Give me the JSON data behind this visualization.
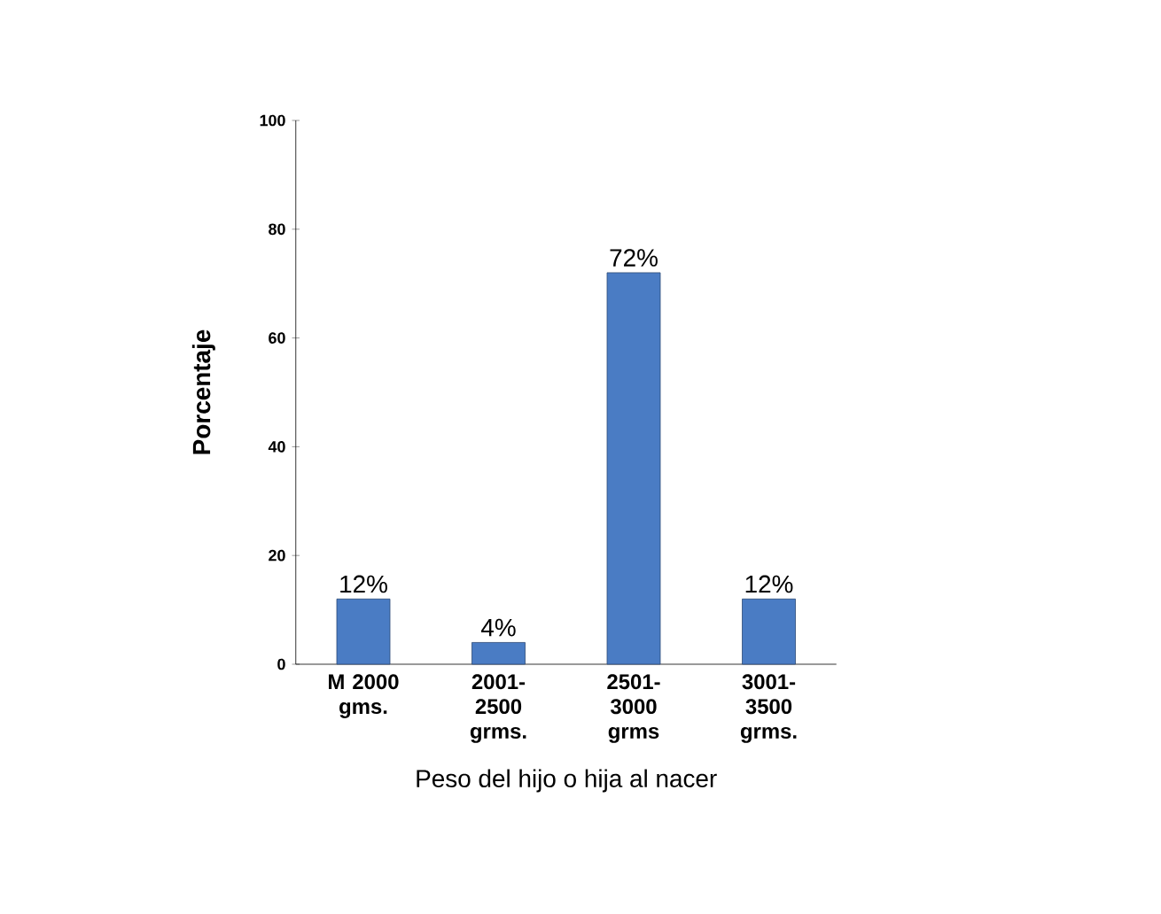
{
  "chart_data": {
    "type": "bar",
    "xlabel": "Peso del hijo o hija al nacer",
    "ylabel": "Porcentaje",
    "categories": [
      "M 2000 gms.",
      "2001-2500 grms.",
      "2501-3000 grms",
      "3001-3500 grms."
    ],
    "values": [
      12,
      4,
      72,
      12
    ],
    "value_labels": [
      "12%",
      "4%",
      "72%",
      "12%"
    ],
    "color": "#4a7cc4",
    "ylim": [
      0,
      100
    ],
    "yticks": [
      0,
      20,
      40,
      60,
      80,
      100
    ]
  }
}
